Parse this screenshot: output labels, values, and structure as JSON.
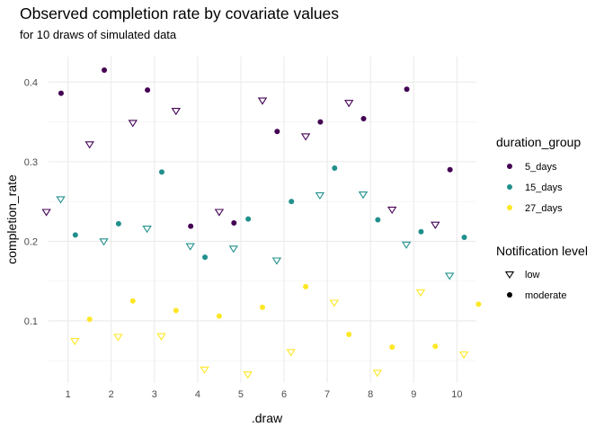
{
  "chart_data": {
    "type": "scatter",
    "title": "Observed completion rate by covariate values",
    "subtitle": "for 10 draws of simulated data",
    "xlabel": ".draw",
    "ylabel": "completion_rate",
    "xlim": [
      0.55,
      10.45
    ],
    "ylim": [
      0.022,
      0.432
    ],
    "x_ticks": [
      1,
      2,
      3,
      4,
      5,
      6,
      7,
      8,
      9,
      10
    ],
    "y_ticks": [
      0.1,
      0.2,
      0.3,
      0.4
    ],
    "y_minor": [
      0.05,
      0.15,
      0.25,
      0.35
    ],
    "grid": true,
    "groups": [
      {
        "name": "5_days",
        "color": "#440154",
        "offset": -0.33
      },
      {
        "name": "15_days",
        "color": "#21908C",
        "offset": 0.0
      },
      {
        "name": "27_days",
        "color": "#FDE725",
        "offset": 0.33
      }
    ],
    "shapes": [
      {
        "name": "low",
        "offset": -0.17,
        "marker": "triangle-down-open"
      },
      {
        "name": "moderate",
        "offset": 0.17,
        "marker": "circle-filled"
      }
    ],
    "series": [
      {
        "group": "5_days",
        "level": "low",
        "values": [
          0.237,
          0.322,
          0.349,
          0.364,
          0.237,
          0.377,
          0.332,
          0.374,
          0.24,
          0.221
        ]
      },
      {
        "group": "5_days",
        "level": "moderate",
        "values": [
          0.386,
          0.415,
          0.39,
          0.219,
          0.223,
          0.338,
          0.35,
          0.354,
          0.391,
          0.29
        ]
      },
      {
        "group": "15_days",
        "level": "low",
        "values": [
          0.253,
          0.2,
          0.216,
          0.194,
          0.191,
          0.176,
          0.258,
          0.259,
          0.196,
          0.157
        ]
      },
      {
        "group": "15_days",
        "level": "moderate",
        "values": [
          0.208,
          0.222,
          0.287,
          0.18,
          0.228,
          0.25,
          0.292,
          0.227,
          0.212,
          0.205
        ]
      },
      {
        "group": "27_days",
        "level": "low",
        "values": [
          0.075,
          0.08,
          0.081,
          0.039,
          0.033,
          0.061,
          0.123,
          0.035,
          0.136,
          0.058
        ]
      },
      {
        "group": "27_days",
        "level": "moderate",
        "values": [
          0.102,
          0.125,
          0.113,
          0.106,
          0.117,
          0.143,
          0.083,
          0.067,
          0.068,
          0.121
        ]
      }
    ],
    "legends": [
      {
        "title": "duration_group",
        "items": [
          "5_days",
          "15_days",
          "27_days"
        ]
      },
      {
        "title": "Notification level",
        "items": [
          "low",
          "moderate"
        ]
      }
    ],
    "legend_position": "right"
  }
}
